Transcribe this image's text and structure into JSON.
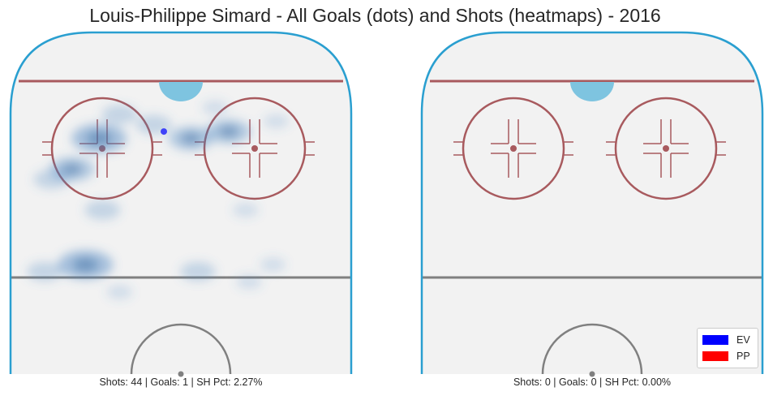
{
  "title": "Louis-Philippe Simard - All Goals (dots) and Shots (heatmaps) - 2016",
  "colors": {
    "ice": "#f2f2f2",
    "boards": "#2a9fd0",
    "red_line": "#a85a5e",
    "center_line": "#808080",
    "crease": "#7ec4e0",
    "heat": "#4a86c2",
    "ev": "#0000ff",
    "pp": "#ff0000"
  },
  "legend": [
    {
      "label": "EV",
      "color": "#0000ff"
    },
    {
      "label": "PP",
      "color": "#ff0000"
    }
  ],
  "chart_data": [
    {
      "type": "heatmap",
      "panel": "left",
      "caption": "Shots: 44 | Goals: 1 | SH Pct: 2.27%",
      "shots": 44,
      "goals": 1,
      "sh_pct": 2.27,
      "goal_points": [
        {
          "x": 0.45,
          "y": 0.29,
          "strength": "EV"
        }
      ],
      "shot_density": [
        {
          "x": 0.26,
          "y": 0.31,
          "level": 4
        },
        {
          "x": 0.18,
          "y": 0.4,
          "level": 3
        },
        {
          "x": 0.12,
          "y": 0.43,
          "level": 2
        },
        {
          "x": 0.32,
          "y": 0.24,
          "level": 2
        },
        {
          "x": 0.42,
          "y": 0.27,
          "level": 2
        },
        {
          "x": 0.53,
          "y": 0.31,
          "level": 3
        },
        {
          "x": 0.64,
          "y": 0.29,
          "level": 3
        },
        {
          "x": 0.6,
          "y": 0.22,
          "level": 1
        },
        {
          "x": 0.78,
          "y": 0.26,
          "level": 1
        },
        {
          "x": 0.27,
          "y": 0.52,
          "level": 2
        },
        {
          "x": 0.22,
          "y": 0.68,
          "level": 4
        },
        {
          "x": 0.1,
          "y": 0.7,
          "level": 2
        },
        {
          "x": 0.32,
          "y": 0.76,
          "level": 1
        },
        {
          "x": 0.55,
          "y": 0.7,
          "level": 2
        },
        {
          "x": 0.7,
          "y": 0.73,
          "level": 1
        },
        {
          "x": 0.77,
          "y": 0.68,
          "level": 1
        },
        {
          "x": 0.69,
          "y": 0.52,
          "level": 1
        }
      ]
    },
    {
      "type": "heatmap",
      "panel": "right",
      "caption": "Shots: 0 | Goals: 0 | SH Pct: 0.00%",
      "shots": 0,
      "goals": 0,
      "sh_pct": 0.0,
      "goal_points": [],
      "shot_density": []
    }
  ]
}
